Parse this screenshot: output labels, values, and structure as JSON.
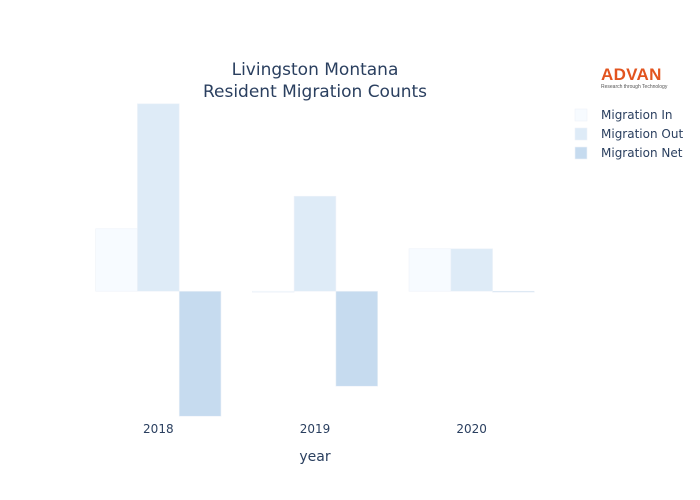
{
  "logo": {
    "word": "ADVAN",
    "tagline": "Research through Technology",
    "color": "#e2541f"
  },
  "chart_data": {
    "type": "bar",
    "title": "Livingston Montana",
    "subtitle": "Resident Migration Counts",
    "xlabel": "year",
    "ylabel": "",
    "categories": [
      "2018",
      "2019",
      "2020"
    ],
    "series": [
      {
        "name": "Migration In",
        "values": [
          50,
          0,
          34
        ],
        "color": "#f7fbff"
      },
      {
        "name": "Migration Out",
        "values": [
          150,
          76,
          34
        ],
        "color": "#deebf7"
      },
      {
        "name": "Migration Net",
        "values": [
          -100,
          -76,
          0
        ],
        "color": "#c6dbef"
      }
    ],
    "ylim": [
      -103,
      153
    ],
    "grid": false,
    "legend_position": "top-right"
  }
}
